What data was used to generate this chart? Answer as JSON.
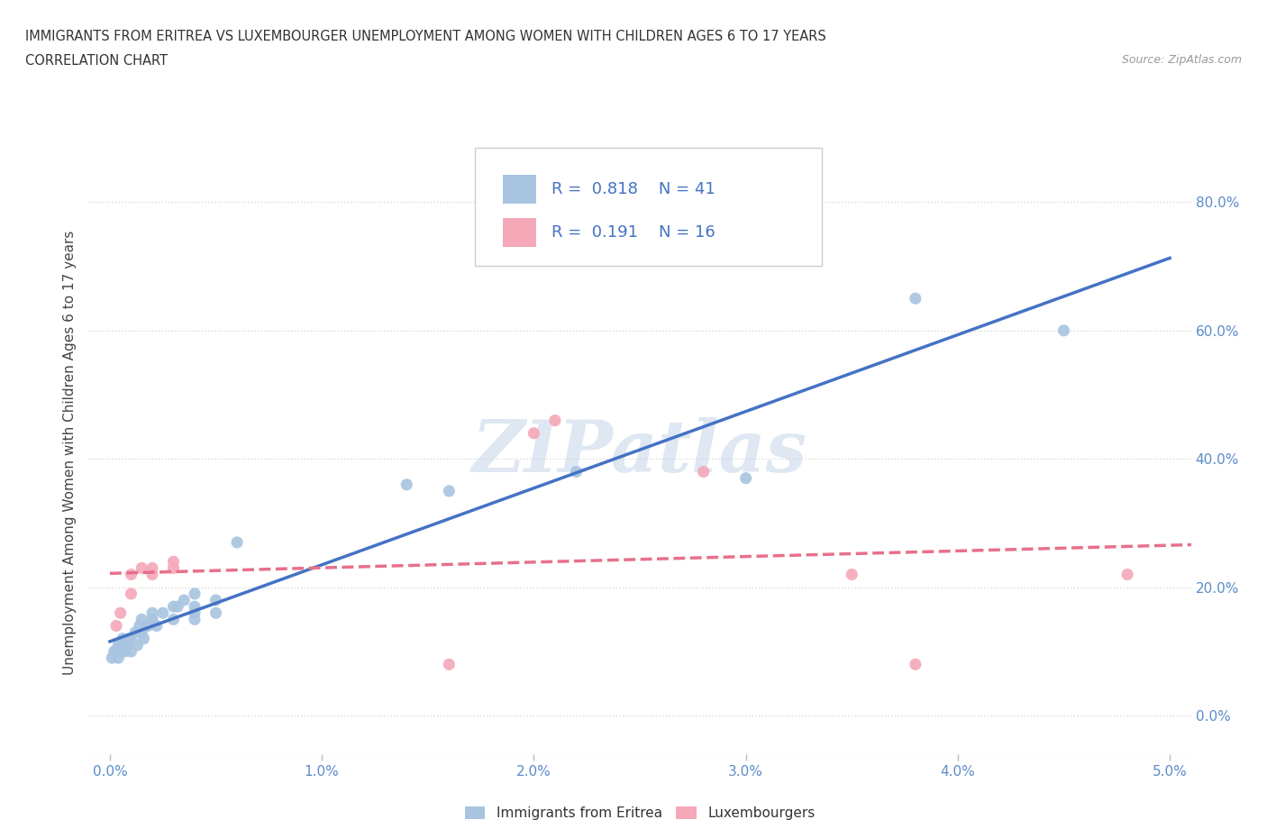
{
  "title_line1": "IMMIGRANTS FROM ERITREA VS LUXEMBOURGER UNEMPLOYMENT AMONG WOMEN WITH CHILDREN AGES 6 TO 17 YEARS",
  "title_line2": "CORRELATION CHART",
  "source_text": "Source: ZipAtlas.com",
  "xlabel_ticks": [
    "0.0%",
    "1.0%",
    "2.0%",
    "3.0%",
    "4.0%",
    "5.0%"
  ],
  "xlabel_vals": [
    0.0,
    0.01,
    0.02,
    0.03,
    0.04,
    0.05
  ],
  "ylabel_ticks": [
    "0.0%",
    "20.0%",
    "40.0%",
    "60.0%",
    "80.0%"
  ],
  "ylabel_vals": [
    0.0,
    0.2,
    0.4,
    0.6,
    0.8
  ],
  "xlim": [
    -0.001,
    0.051
  ],
  "ylim": [
    -0.06,
    0.88
  ],
  "ylabel": "Unemployment Among Women with Children Ages 6 to 17 years",
  "legend_bottom": [
    "Immigrants from Eritrea",
    "Luxembourgers"
  ],
  "eritrea_color": "#a8c4e0",
  "lux_color": "#f4a8b8",
  "eritrea_scatter": [
    [
      0.0001,
      0.09
    ],
    [
      0.0002,
      0.1
    ],
    [
      0.0003,
      0.1
    ],
    [
      0.0004,
      0.11
    ],
    [
      0.0004,
      0.09
    ],
    [
      0.0005,
      0.1
    ],
    [
      0.0005,
      0.11
    ],
    [
      0.0006,
      0.12
    ],
    [
      0.0007,
      0.1
    ],
    [
      0.0008,
      0.11
    ],
    [
      0.0009,
      0.12
    ],
    [
      0.001,
      0.1
    ],
    [
      0.001,
      0.12
    ],
    [
      0.0012,
      0.13
    ],
    [
      0.0013,
      0.11
    ],
    [
      0.0014,
      0.14
    ],
    [
      0.0015,
      0.13
    ],
    [
      0.0015,
      0.15
    ],
    [
      0.0016,
      0.12
    ],
    [
      0.0018,
      0.14
    ],
    [
      0.002,
      0.15
    ],
    [
      0.002,
      0.16
    ],
    [
      0.0022,
      0.14
    ],
    [
      0.0025,
      0.16
    ],
    [
      0.003,
      0.17
    ],
    [
      0.003,
      0.15
    ],
    [
      0.0032,
      0.17
    ],
    [
      0.0035,
      0.18
    ],
    [
      0.004,
      0.15
    ],
    [
      0.004,
      0.16
    ],
    [
      0.004,
      0.17
    ],
    [
      0.004,
      0.19
    ],
    [
      0.005,
      0.18
    ],
    [
      0.005,
      0.16
    ],
    [
      0.006,
      0.27
    ],
    [
      0.014,
      0.36
    ],
    [
      0.016,
      0.35
    ],
    [
      0.022,
      0.38
    ],
    [
      0.03,
      0.37
    ],
    [
      0.038,
      0.65
    ],
    [
      0.045,
      0.6
    ]
  ],
  "lux_scatter": [
    [
      0.0003,
      0.14
    ],
    [
      0.0005,
      0.16
    ],
    [
      0.001,
      0.19
    ],
    [
      0.001,
      0.22
    ],
    [
      0.0015,
      0.23
    ],
    [
      0.002,
      0.22
    ],
    [
      0.002,
      0.23
    ],
    [
      0.003,
      0.24
    ],
    [
      0.003,
      0.23
    ],
    [
      0.016,
      0.08
    ],
    [
      0.02,
      0.44
    ],
    [
      0.021,
      0.46
    ],
    [
      0.028,
      0.38
    ],
    [
      0.035,
      0.22
    ],
    [
      0.038,
      0.08
    ],
    [
      0.048,
      0.22
    ]
  ],
  "eritrea_line_color": "#4472c4",
  "lux_line_color": "#e8708a",
  "lux_line_style": "dashed",
  "R_eritrea": 0.818,
  "N_eritrea": 41,
  "R_lux": 0.191,
  "N_lux": 16,
  "watermark_text": "ZIPatlas",
  "background_color": "#ffffff",
  "grid_color": "#d8d8d8",
  "tick_color": "#5b8cc8"
}
